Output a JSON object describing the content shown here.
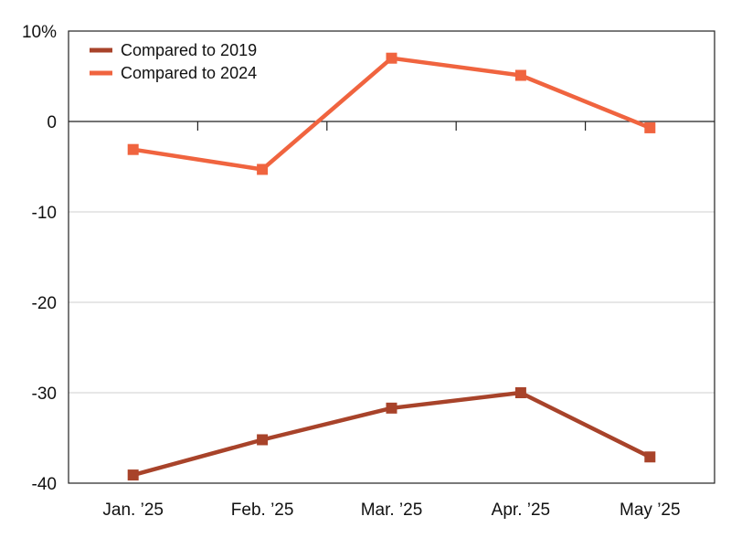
{
  "chart_data": {
    "type": "line",
    "categories": [
      "Jan. ’25",
      "Feb. ’25",
      "Mar. ’25",
      "Apr. ’25",
      "May ’25"
    ],
    "series": [
      {
        "name": "Compared to 2019",
        "color": "#a8432a",
        "values": [
          -39.1,
          -35.2,
          -31.7,
          -30.0,
          -37.1
        ]
      },
      {
        "name": "Compared to 2024",
        "color": "#f0643f",
        "values": [
          -3.1,
          -5.3,
          7.0,
          5.1,
          -0.7
        ]
      }
    ],
    "ylim": [
      -40,
      10
    ],
    "y_ticks": [
      10,
      0,
      -10,
      -20,
      -30,
      -40
    ],
    "y_tick_labels": [
      "10%",
      "0",
      "-10",
      "-20",
      "-30",
      "-40"
    ],
    "legend_position": "top-left",
    "grid": "horizontal",
    "zero_line": true,
    "marker": "square"
  }
}
